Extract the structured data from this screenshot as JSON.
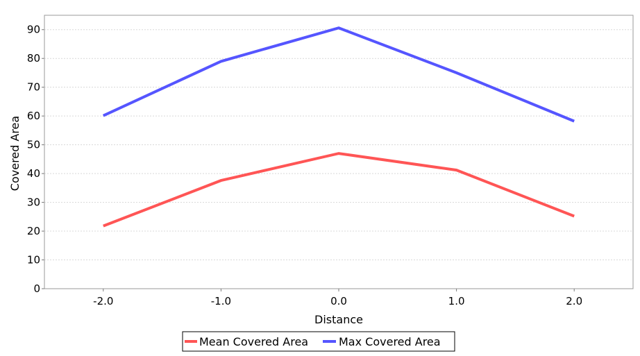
{
  "chart_data": {
    "type": "line",
    "title": "",
    "xlabel": "Distance",
    "ylabel": "Covered Area",
    "x": [
      -2.0,
      -1.0,
      0.0,
      1.0,
      2.0
    ],
    "x_tick_labels": [
      "-2.0",
      "-1.0",
      "0.0",
      "1.0",
      "2.0"
    ],
    "xlim": [
      -2.5,
      2.5
    ],
    "ylim": [
      0,
      95
    ],
    "y_ticks": [
      0,
      10,
      20,
      30,
      40,
      50,
      60,
      70,
      80,
      90
    ],
    "y_tick_labels": [
      "0",
      "10",
      "20",
      "30",
      "40",
      "50",
      "60",
      "70",
      "80",
      "90"
    ],
    "grid": "horizontal dashed",
    "legend_position": "bottom-center",
    "series": [
      {
        "name": "Mean Covered Area",
        "color": "#ff5555",
        "values": [
          21.8,
          37.6,
          47.0,
          41.2,
          25.2
        ]
      },
      {
        "name": "Max Covered Area",
        "color": "#5555ff",
        "values": [
          60.1,
          79.0,
          90.6,
          75.0,
          58.2
        ]
      }
    ]
  }
}
